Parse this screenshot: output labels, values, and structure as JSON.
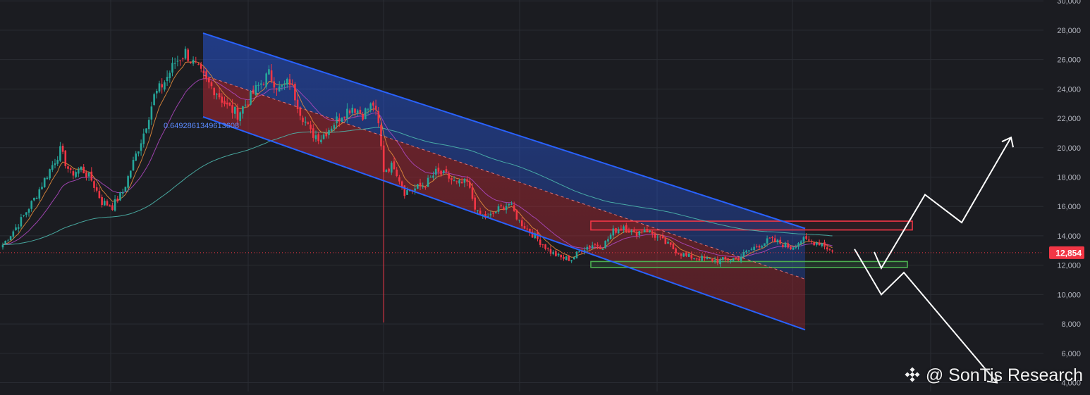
{
  "chart_data": {
    "type": "candlestick",
    "title": "",
    "xlabel": "",
    "ylabel": "",
    "ylim": [
      3600,
      30000
    ],
    "y_ticks": [
      4000,
      6000,
      8000,
      10000,
      12000,
      14000,
      16000,
      18000,
      20000,
      22000,
      24000,
      26000,
      28000,
      30000
    ],
    "y_tick_labels": [
      "4,000",
      "6,000",
      "8,000",
      "10,000",
      "12,000",
      "14,000",
      "16,000",
      "18,000",
      "20,000",
      "22,000",
      "24,000",
      "26,000",
      "28,000",
      "30,000"
    ],
    "grid": true,
    "current_price": 12854,
    "current_price_label": "12,854",
    "fib_label": "0.6492861349613608",
    "candle_keypoints": [
      [
        0,
        13400
      ],
      [
        6,
        14800
      ],
      [
        12,
        16500
      ],
      [
        18,
        18500
      ],
      [
        22,
        19800
      ],
      [
        26,
        18200
      ],
      [
        30,
        18600
      ],
      [
        34,
        17800
      ],
      [
        38,
        16300
      ],
      [
        42,
        16000
      ],
      [
        46,
        17000
      ],
      [
        50,
        19000
      ],
      [
        54,
        21000
      ],
      [
        58,
        23500
      ],
      [
        62,
        24500
      ],
      [
        66,
        25800
      ],
      [
        70,
        26500
      ],
      [
        74,
        25500
      ],
      [
        78,
        24500
      ],
      [
        82,
        23800
      ],
      [
        86,
        22800
      ],
      [
        90,
        22300
      ],
      [
        94,
        23200
      ],
      [
        98,
        24200
      ],
      [
        102,
        25000
      ],
      [
        106,
        24000
      ],
      [
        110,
        24500
      ],
      [
        114,
        22500
      ],
      [
        118,
        21000
      ],
      [
        122,
        20700
      ],
      [
        126,
        21500
      ],
      [
        130,
        22300
      ],
      [
        134,
        22800
      ],
      [
        138,
        22300
      ],
      [
        142,
        23000
      ],
      [
        144,
        21500
      ],
      [
        146,
        18500
      ],
      [
        150,
        18800
      ],
      [
        154,
        17000
      ],
      [
        158,
        17200
      ],
      [
        162,
        17500
      ],
      [
        166,
        18300
      ],
      [
        170,
        18100
      ],
      [
        174,
        17500
      ],
      [
        178,
        17600
      ],
      [
        182,
        15500
      ],
      [
        186,
        15200
      ],
      [
        190,
        15800
      ],
      [
        194,
        16200
      ],
      [
        198,
        15000
      ],
      [
        202,
        14300
      ],
      [
        206,
        13600
      ],
      [
        210,
        12900
      ],
      [
        214,
        12500
      ],
      [
        218,
        12400
      ],
      [
        222,
        13100
      ],
      [
        226,
        13400
      ],
      [
        230,
        13300
      ],
      [
        234,
        14300
      ],
      [
        238,
        14700
      ],
      [
        242,
        14100
      ],
      [
        246,
        14500
      ],
      [
        250,
        14000
      ],
      [
        254,
        13500
      ],
      [
        258,
        13000
      ],
      [
        262,
        12600
      ],
      [
        266,
        12500
      ],
      [
        270,
        12400
      ],
      [
        274,
        12300
      ],
      [
        278,
        12400
      ],
      [
        282,
        12500
      ],
      [
        286,
        13000
      ],
      [
        290,
        13400
      ],
      [
        294,
        13700
      ],
      [
        298,
        13500
      ],
      [
        302,
        13200
      ],
      [
        306,
        13700
      ],
      [
        310,
        13600
      ],
      [
        314,
        13500
      ],
      [
        316,
        13200
      ],
      [
        318,
        12900
      ]
    ],
    "candle_count": 319,
    "wick_spike": {
      "index": 146,
      "low": 8100
    },
    "channel": {
      "upper": [
        [
          0,
          27800
        ],
        [
          1,
          14500
        ]
      ],
      "lower": [
        [
          0,
          22100
        ],
        [
          1,
          7600
        ]
      ],
      "mid_dash": true
    },
    "resistance_zone": [
      14400,
      15000
    ],
    "support_zone": [
      11850,
      12250
    ],
    "projection_up": [
      [
        0,
        12900
      ],
      [
        1,
        11800
      ],
      [
        2,
        16800
      ],
      [
        3,
        14900
      ],
      [
        4,
        20700
      ]
    ],
    "projection_down": [
      [
        0,
        13100
      ],
      [
        1,
        10000
      ],
      [
        2,
        11500
      ],
      [
        3,
        4000
      ]
    ],
    "colors": {
      "background": "#1b1c21",
      "grid": "#2a2c33",
      "up_candle": "#26a69a",
      "down_candle": "#f23645",
      "channel_line": "#2962ff",
      "channel_fill_top": "#2962ff",
      "channel_fill_bottom": "#b22833",
      "ema_fast": "#e08a3c",
      "ema_mid": "#ab47bc",
      "ema_slow": "#4db6ac",
      "resistance": "#f23645",
      "support": "#4caf50",
      "projection": "#ffffff",
      "price_tag": "#f23645",
      "axis_text": "#b2b5be"
    }
  },
  "watermark": {
    "text": "@ SonTis Research",
    "icon": "binance-diamond-icon"
  }
}
